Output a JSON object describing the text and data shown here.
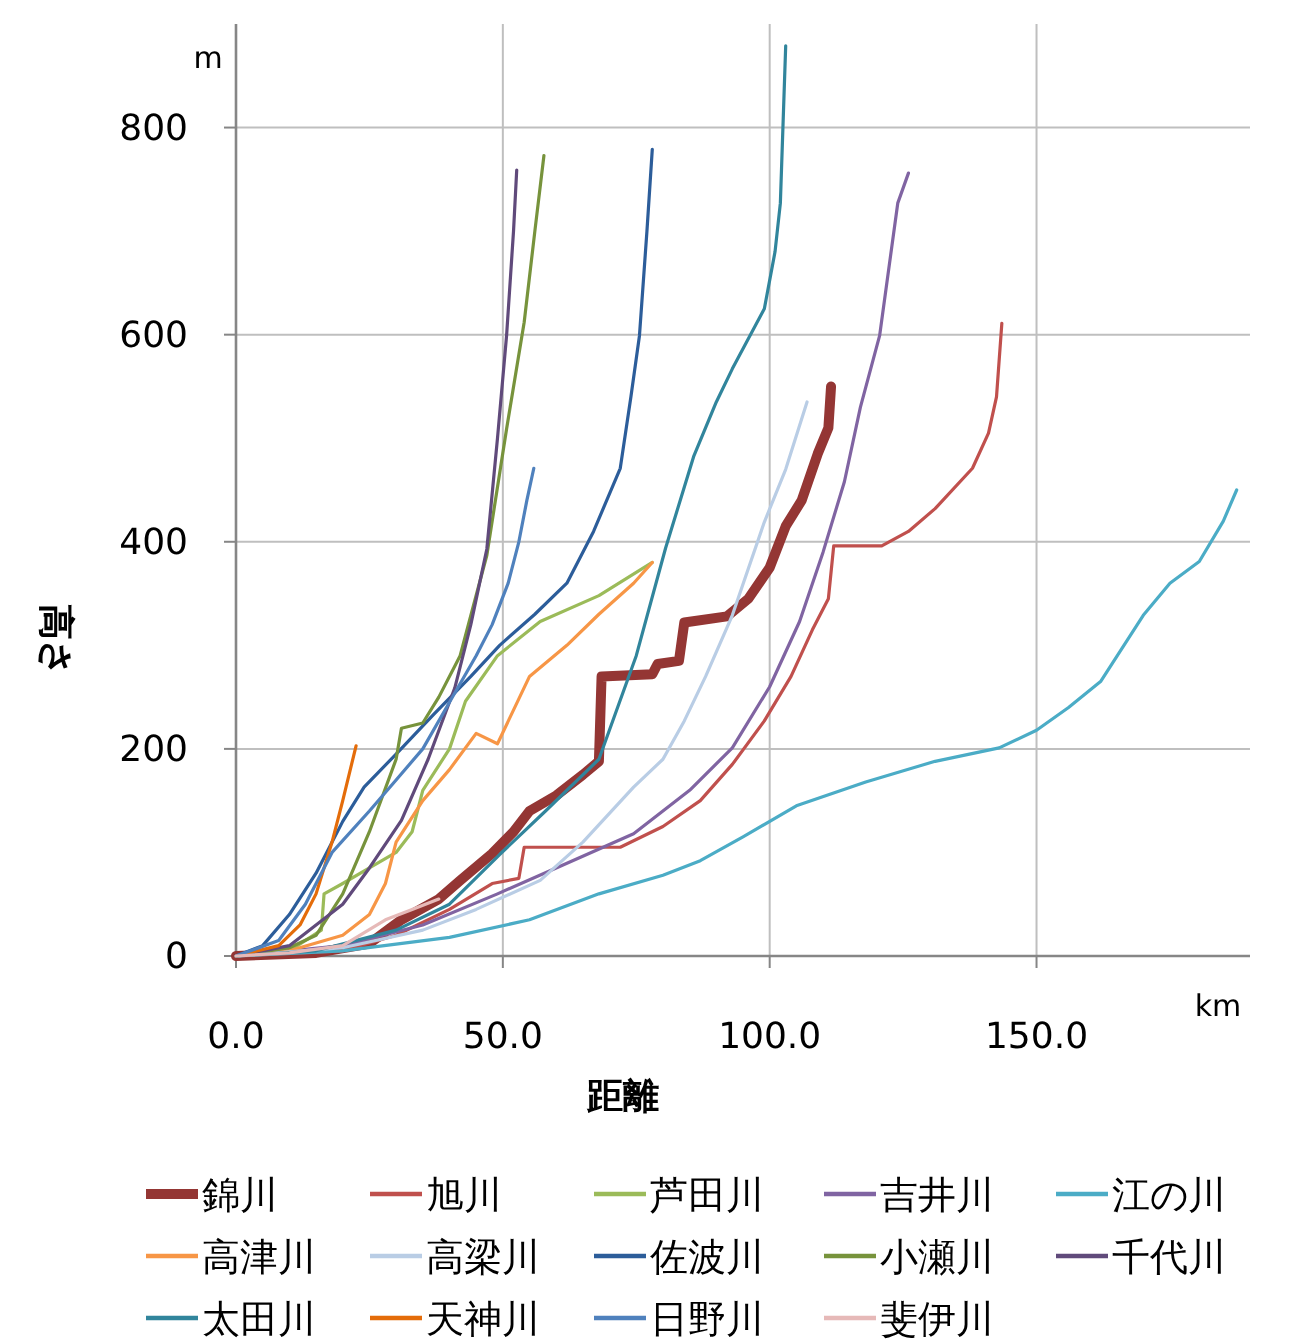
{
  "chart_data": {
    "type": "line",
    "xlabel": "距離",
    "ylabel": "高さ",
    "annotations": [
      "m",
      "km"
    ],
    "xlim": [
      0,
      190
    ],
    "ylim": [
      0,
      900
    ],
    "xticks": [
      {
        "value": 0,
        "label": "0.0"
      },
      {
        "value": 50,
        "label": "50.0"
      },
      {
        "value": 100,
        "label": "100.0"
      },
      {
        "value": 150,
        "label": "150.0"
      }
    ],
    "yticks": [
      0,
      200,
      400,
      600,
      800
    ],
    "grid": true,
    "legend": "bottom",
    "marker": "none",
    "line_style": "solid",
    "series": [
      {
        "name": "錦川",
        "color": "#943634",
        "x": [
          0,
          15,
          25,
          31,
          38,
          42,
          48,
          52,
          55,
          60,
          65,
          68,
          68.5,
          78,
          79,
          83,
          84,
          92,
          96,
          100,
          103,
          106,
          109,
          111,
          111.5
        ],
        "values": [
          0,
          3,
          12,
          35,
          55,
          73,
          99,
          120,
          140,
          155,
          175,
          188,
          270,
          272,
          282,
          285,
          322,
          328,
          345,
          375,
          415,
          440,
          485,
          510,
          550
        ]
      },
      {
        "name": "旭川",
        "color": "#c0504d",
        "x": [
          0,
          20,
          30,
          40,
          48,
          53,
          54,
          72,
          80,
          87,
          93,
          99,
          104,
          108,
          111,
          112,
          121,
          126,
          131,
          138,
          141,
          142.5,
          143.5
        ],
        "values": [
          0,
          5,
          20,
          45,
          70,
          75,
          105,
          105,
          125,
          150,
          185,
          227,
          270,
          315,
          345,
          396,
          396,
          410,
          432,
          471,
          505,
          540,
          611
        ]
      },
      {
        "name": "芦田川",
        "color": "#9bbb59",
        "x": [
          0,
          10,
          16,
          16.5,
          20,
          25,
          30,
          33,
          35,
          40,
          43,
          49,
          57,
          68,
          78
        ],
        "values": [
          0,
          5,
          25,
          60,
          70,
          85,
          100,
          120,
          160,
          200,
          246,
          290,
          323,
          348,
          380
        ]
      },
      {
        "name": "吉井川",
        "color": "#8064a2",
        "x": [
          0,
          20,
          35,
          49,
          60,
          74.5,
          85,
          93,
          100,
          105.6,
          110,
          114,
          117,
          120.6,
          124,
          126
        ],
        "values": [
          0,
          10,
          30,
          60,
          85,
          118,
          160,
          201,
          260,
          323,
          390,
          458,
          530,
          599,
          727,
          756
        ]
      },
      {
        "name": "江の川",
        "color": "#4bacc6",
        "x": [
          0,
          20,
          40,
          55,
          68,
          80,
          87,
          95,
          105,
          118,
          131,
          143,
          150,
          156,
          162,
          170,
          175,
          180.5,
          185,
          187.5
        ],
        "values": [
          0,
          5,
          18,
          35,
          60,
          78,
          92,
          115,
          145,
          168,
          188,
          201,
          218,
          240,
          265,
          329,
          360,
          381,
          420,
          450
        ]
      },
      {
        "name": "高津川",
        "color": "#f79646",
        "x": [
          0,
          10,
          20,
          25,
          28,
          30,
          35,
          40,
          45,
          49,
          55,
          62,
          68,
          74.5,
          78
        ],
        "values": [
          0,
          5,
          20,
          40,
          70,
          110,
          150,
          180,
          215,
          205,
          270,
          300,
          330,
          360,
          380
        ]
      },
      {
        "name": "高梁川",
        "color": "#b9cde5",
        "x": [
          0,
          20,
          35,
          45,
          57,
          65,
          74.5,
          80,
          84,
          88,
          93,
          99,
          103,
          107
        ],
        "values": [
          0,
          8,
          25,
          45,
          73,
          110,
          163,
          190,
          227,
          270,
          329,
          419,
          470,
          535
        ]
      },
      {
        "name": "佐波川",
        "color": "#2c5d9a",
        "x": [
          0,
          5,
          10,
          15,
          20,
          24,
          30,
          37,
          44,
          49.4,
          56,
          62,
          67,
          72,
          74,
          75.6,
          77,
          78
        ],
        "values": [
          0,
          10,
          40,
          80,
          130,
          163,
          195,
          233,
          270,
          300,
          330,
          360,
          410,
          471,
          540,
          599,
          700,
          779
        ]
      },
      {
        "name": "小瀬川",
        "color": "#77933c",
        "x": [
          0,
          10,
          15,
          20,
          25,
          30,
          31,
          35,
          38,
          42,
          47,
          50.7,
          54,
          56,
          57.7
        ],
        "values": [
          0,
          8,
          20,
          60,
          120,
          190,
          220,
          225,
          250,
          290,
          387,
          509,
          612,
          700,
          773
        ]
      },
      {
        "name": "千代川",
        "color": "#604a7b",
        "x": [
          0,
          10,
          20,
          25,
          31,
          36,
          41,
          44,
          47,
          49,
          50.7,
          52,
          52.6
        ],
        "values": [
          0,
          10,
          50,
          85,
          131,
          190,
          259,
          320,
          393,
          500,
          599,
          700,
          759
        ]
      },
      {
        "name": "太田川",
        "color": "#31859c",
        "x": [
          0,
          15,
          30,
          40,
          49.4,
          58,
          68,
          75,
          80.5,
          85.8,
          90,
          93,
          99,
          101,
          102,
          103
        ],
        "values": [
          0,
          5,
          25,
          50,
          98,
          140,
          190,
          290,
          394,
          483,
          535,
          567,
          625,
          680,
          727,
          879
        ]
      },
      {
        "name": "天神川",
        "color": "#e46c0a",
        "x": [
          0,
          8,
          12,
          15,
          18,
          20,
          22.5
        ],
        "values": [
          0,
          10,
          30,
          60,
          110,
          150,
          203
        ]
      },
      {
        "name": "日野川",
        "color": "#4f81bd",
        "x": [
          0,
          8,
          13,
          18,
          25,
          30,
          35,
          40,
          45,
          48,
          51,
          53,
          54.5,
          55.8
        ],
        "values": [
          0,
          15,
          50,
          100,
          140,
          170,
          200,
          245,
          290,
          320,
          360,
          400,
          440,
          471
        ]
      },
      {
        "name": "斐伊川",
        "color": "#e6b9b8",
        "x": [
          0,
          10,
          20,
          28,
          33,
          38
        ],
        "values": [
          0,
          3,
          10,
          35,
          45,
          55
        ]
      }
    ]
  }
}
